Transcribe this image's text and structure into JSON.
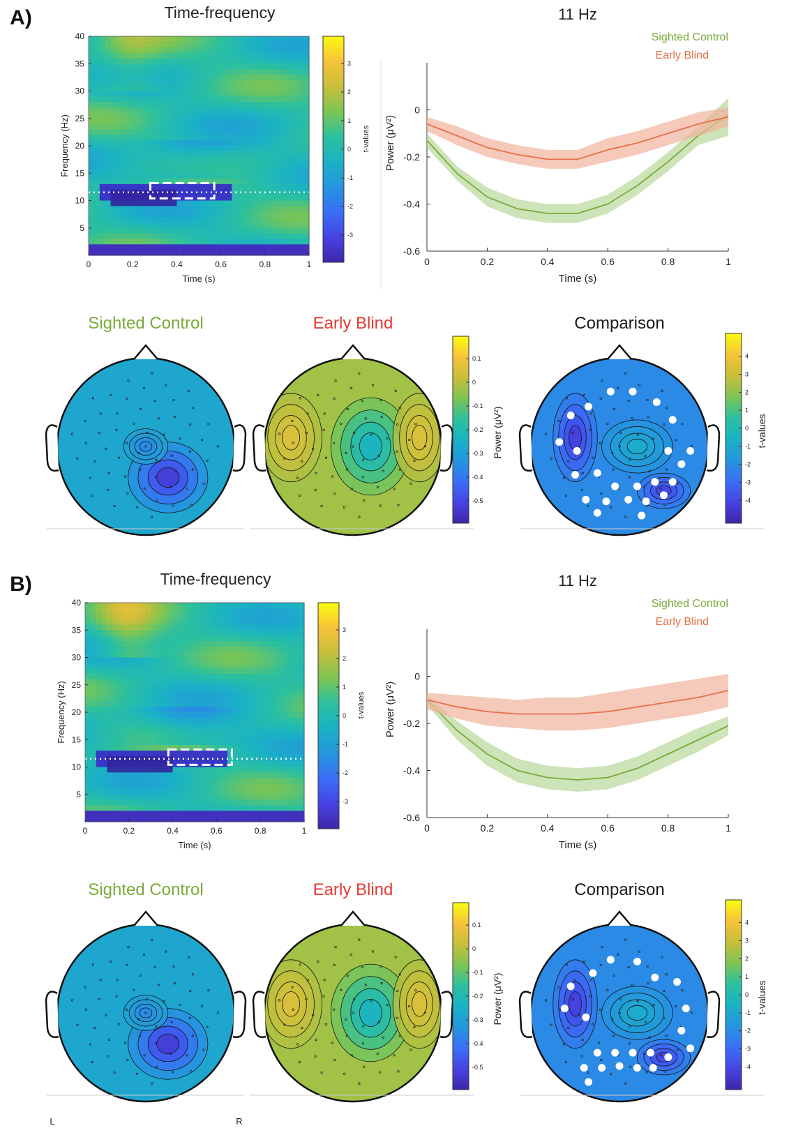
{
  "colors": {
    "sighted": "#7aaa3a",
    "sighted_band": "#b8d79a",
    "blind": "#e5704a",
    "blind_band": "#f1b39c",
    "early_blind_title": "#e53a2f",
    "parula": [
      "#3e26a8",
      "#4743e4",
      "#3a6ff6",
      "#2595de",
      "#1ab2c5",
      "#2cc09e",
      "#7dc553",
      "#c8be3b",
      "#f7c33a",
      "#f9fb0e"
    ]
  },
  "panels": [
    {
      "label": "A)",
      "tf": {
        "title": "Time-frequency",
        "xlabel": "Time (s)",
        "ylabel": "Frequency (Hz)",
        "xticks": [
          "0",
          "0.2",
          "0.4",
          "0.6",
          "0.8",
          "1"
        ],
        "yticks": [
          "5",
          "10",
          "15",
          "20",
          "25",
          "30",
          "35",
          "40"
        ],
        "cbar_label": "t-values",
        "cbar_ticks": [
          "3",
          "2",
          "1",
          "0",
          "-1",
          "-2",
          "-3"
        ],
        "marker_freq_hz": 11.5,
        "cluster_window_s": [
          0.28,
          0.57
        ]
      },
      "line": {
        "title": "11 Hz",
        "xlabel": "Time (s)",
        "ylabel": "Power (μV²)",
        "xticks": [
          "0",
          "0.2",
          "0.4",
          "0.6",
          "0.8",
          "1"
        ],
        "yticks": [
          "0",
          "-0.2",
          "-0.4",
          "-0.6"
        ],
        "legend": [
          "Sighted Control",
          "Early Blind"
        ]
      },
      "chart_data": {
        "type": "line",
        "title": "11 Hz",
        "xlabel": "Time (s)",
        "ylabel": "Power (μV²)",
        "xlim": [
          0,
          1
        ],
        "ylim": [
          -0.6,
          0.2
        ],
        "x": [
          0,
          0.1,
          0.2,
          0.3,
          0.4,
          0.5,
          0.6,
          0.7,
          0.8,
          0.9,
          1.0
        ],
        "series": [
          {
            "name": "Sighted Control",
            "values": [
              -0.13,
              -0.27,
              -0.37,
              -0.42,
              -0.44,
              -0.44,
              -0.4,
              -0.32,
              -0.22,
              -0.11,
              -0.02
            ],
            "lower": [
              -0.16,
              -0.3,
              -0.41,
              -0.46,
              -0.48,
              -0.48,
              -0.44,
              -0.36,
              -0.26,
              -0.15,
              -0.11
            ],
            "upper": [
              -0.1,
              -0.24,
              -0.33,
              -0.38,
              -0.4,
              -0.4,
              -0.36,
              -0.28,
              -0.18,
              -0.07,
              0.05
            ]
          },
          {
            "name": "Early Blind",
            "values": [
              -0.06,
              -0.11,
              -0.16,
              -0.19,
              -0.21,
              -0.21,
              -0.17,
              -0.14,
              -0.1,
              -0.06,
              -0.03
            ],
            "lower": [
              -0.09,
              -0.15,
              -0.2,
              -0.23,
              -0.25,
              -0.25,
              -0.22,
              -0.19,
              -0.15,
              -0.11,
              -0.07
            ],
            "upper": [
              -0.03,
              -0.07,
              -0.12,
              -0.15,
              -0.17,
              -0.17,
              -0.12,
              -0.09,
              -0.05,
              -0.01,
              0.01
            ]
          }
        ]
      },
      "topos": [
        {
          "title": "Sighted Control"
        },
        {
          "title": "Early Blind"
        },
        {
          "title": "Comparison"
        }
      ],
      "power_cbar": {
        "label": "Power (μV²)",
        "ticks": [
          "0.1",
          "0",
          "-0.1",
          "-0.2",
          "-0.3",
          "-0.4",
          "-0.5"
        ]
      },
      "t_cbar": {
        "label": "t-values",
        "ticks": [
          "4",
          "3",
          "2",
          "1",
          "0",
          "-1",
          "-2",
          "-3",
          "-4"
        ]
      }
    },
    {
      "label": "B)",
      "tf": {
        "title": "Time-frequency",
        "xlabel": "Time (s)",
        "ylabel": "Frequency (Hz)",
        "xticks": [
          "0",
          "0.2",
          "0.4",
          "0.6",
          "0.8",
          "1"
        ],
        "yticks": [
          "5",
          "10",
          "15",
          "20",
          "25",
          "30",
          "35",
          "40"
        ],
        "cbar_label": "t-values",
        "cbar_ticks": [
          "3",
          "2",
          "1",
          "0",
          "-1",
          "-2",
          "-3"
        ],
        "marker_freq_hz": 11.5,
        "cluster_window_s": [
          0.38,
          0.67
        ]
      },
      "line": {
        "title": "11 Hz",
        "xlabel": "Time (s)",
        "ylabel": "Power (μV²)",
        "xticks": [
          "0",
          "0.2",
          "0.4",
          "0.6",
          "0.8",
          "1"
        ],
        "yticks": [
          "0",
          "-0.2",
          "-0.4",
          "-0.6"
        ],
        "legend": [
          "Sighted Control",
          "Early Blind"
        ]
      },
      "chart_data": {
        "type": "line",
        "title": "11 Hz",
        "xlabel": "Time (s)",
        "ylabel": "Power (μV²)",
        "xlim": [
          0,
          1
        ],
        "ylim": [
          -0.6,
          0.2
        ],
        "x": [
          0,
          0.1,
          0.2,
          0.3,
          0.4,
          0.5,
          0.6,
          0.7,
          0.8,
          0.9,
          1.0
        ],
        "series": [
          {
            "name": "Sighted Control",
            "values": [
              -0.1,
              -0.23,
              -0.33,
              -0.4,
              -0.43,
              -0.44,
              -0.43,
              -0.39,
              -0.33,
              -0.27,
              -0.21
            ],
            "lower": [
              -0.12,
              -0.27,
              -0.38,
              -0.45,
              -0.48,
              -0.49,
              -0.48,
              -0.44,
              -0.38,
              -0.32,
              -0.25
            ],
            "upper": [
              -0.08,
              -0.19,
              -0.28,
              -0.35,
              -0.38,
              -0.39,
              -0.38,
              -0.34,
              -0.28,
              -0.22,
              -0.17
            ]
          },
          {
            "name": "Early Blind",
            "values": [
              -0.1,
              -0.13,
              -0.15,
              -0.16,
              -0.16,
              -0.16,
              -0.15,
              -0.13,
              -0.11,
              -0.09,
              -0.06
            ],
            "lower": [
              -0.14,
              -0.18,
              -0.21,
              -0.22,
              -0.23,
              -0.23,
              -0.22,
              -0.2,
              -0.18,
              -0.16,
              -0.13
            ],
            "upper": [
              -0.07,
              -0.08,
              -0.09,
              -0.1,
              -0.09,
              -0.09,
              -0.07,
              -0.05,
              -0.03,
              -0.01,
              0.01
            ]
          }
        ]
      },
      "topos": [
        {
          "title": "Sighted Control"
        },
        {
          "title": "Early Blind"
        },
        {
          "title": "Comparison"
        }
      ],
      "power_cbar": {
        "label": "Power (μV²)",
        "ticks": [
          "0.1",
          "0",
          "-0.1",
          "-0.2",
          "-0.3",
          "-0.4",
          "-0.5"
        ]
      },
      "t_cbar": {
        "label": "t-values",
        "ticks": [
          "4",
          "3",
          "2",
          "1",
          "0",
          "-1",
          "-2",
          "-3",
          "-4"
        ]
      }
    }
  ],
  "orientation": {
    "left": "L",
    "right": "R"
  }
}
